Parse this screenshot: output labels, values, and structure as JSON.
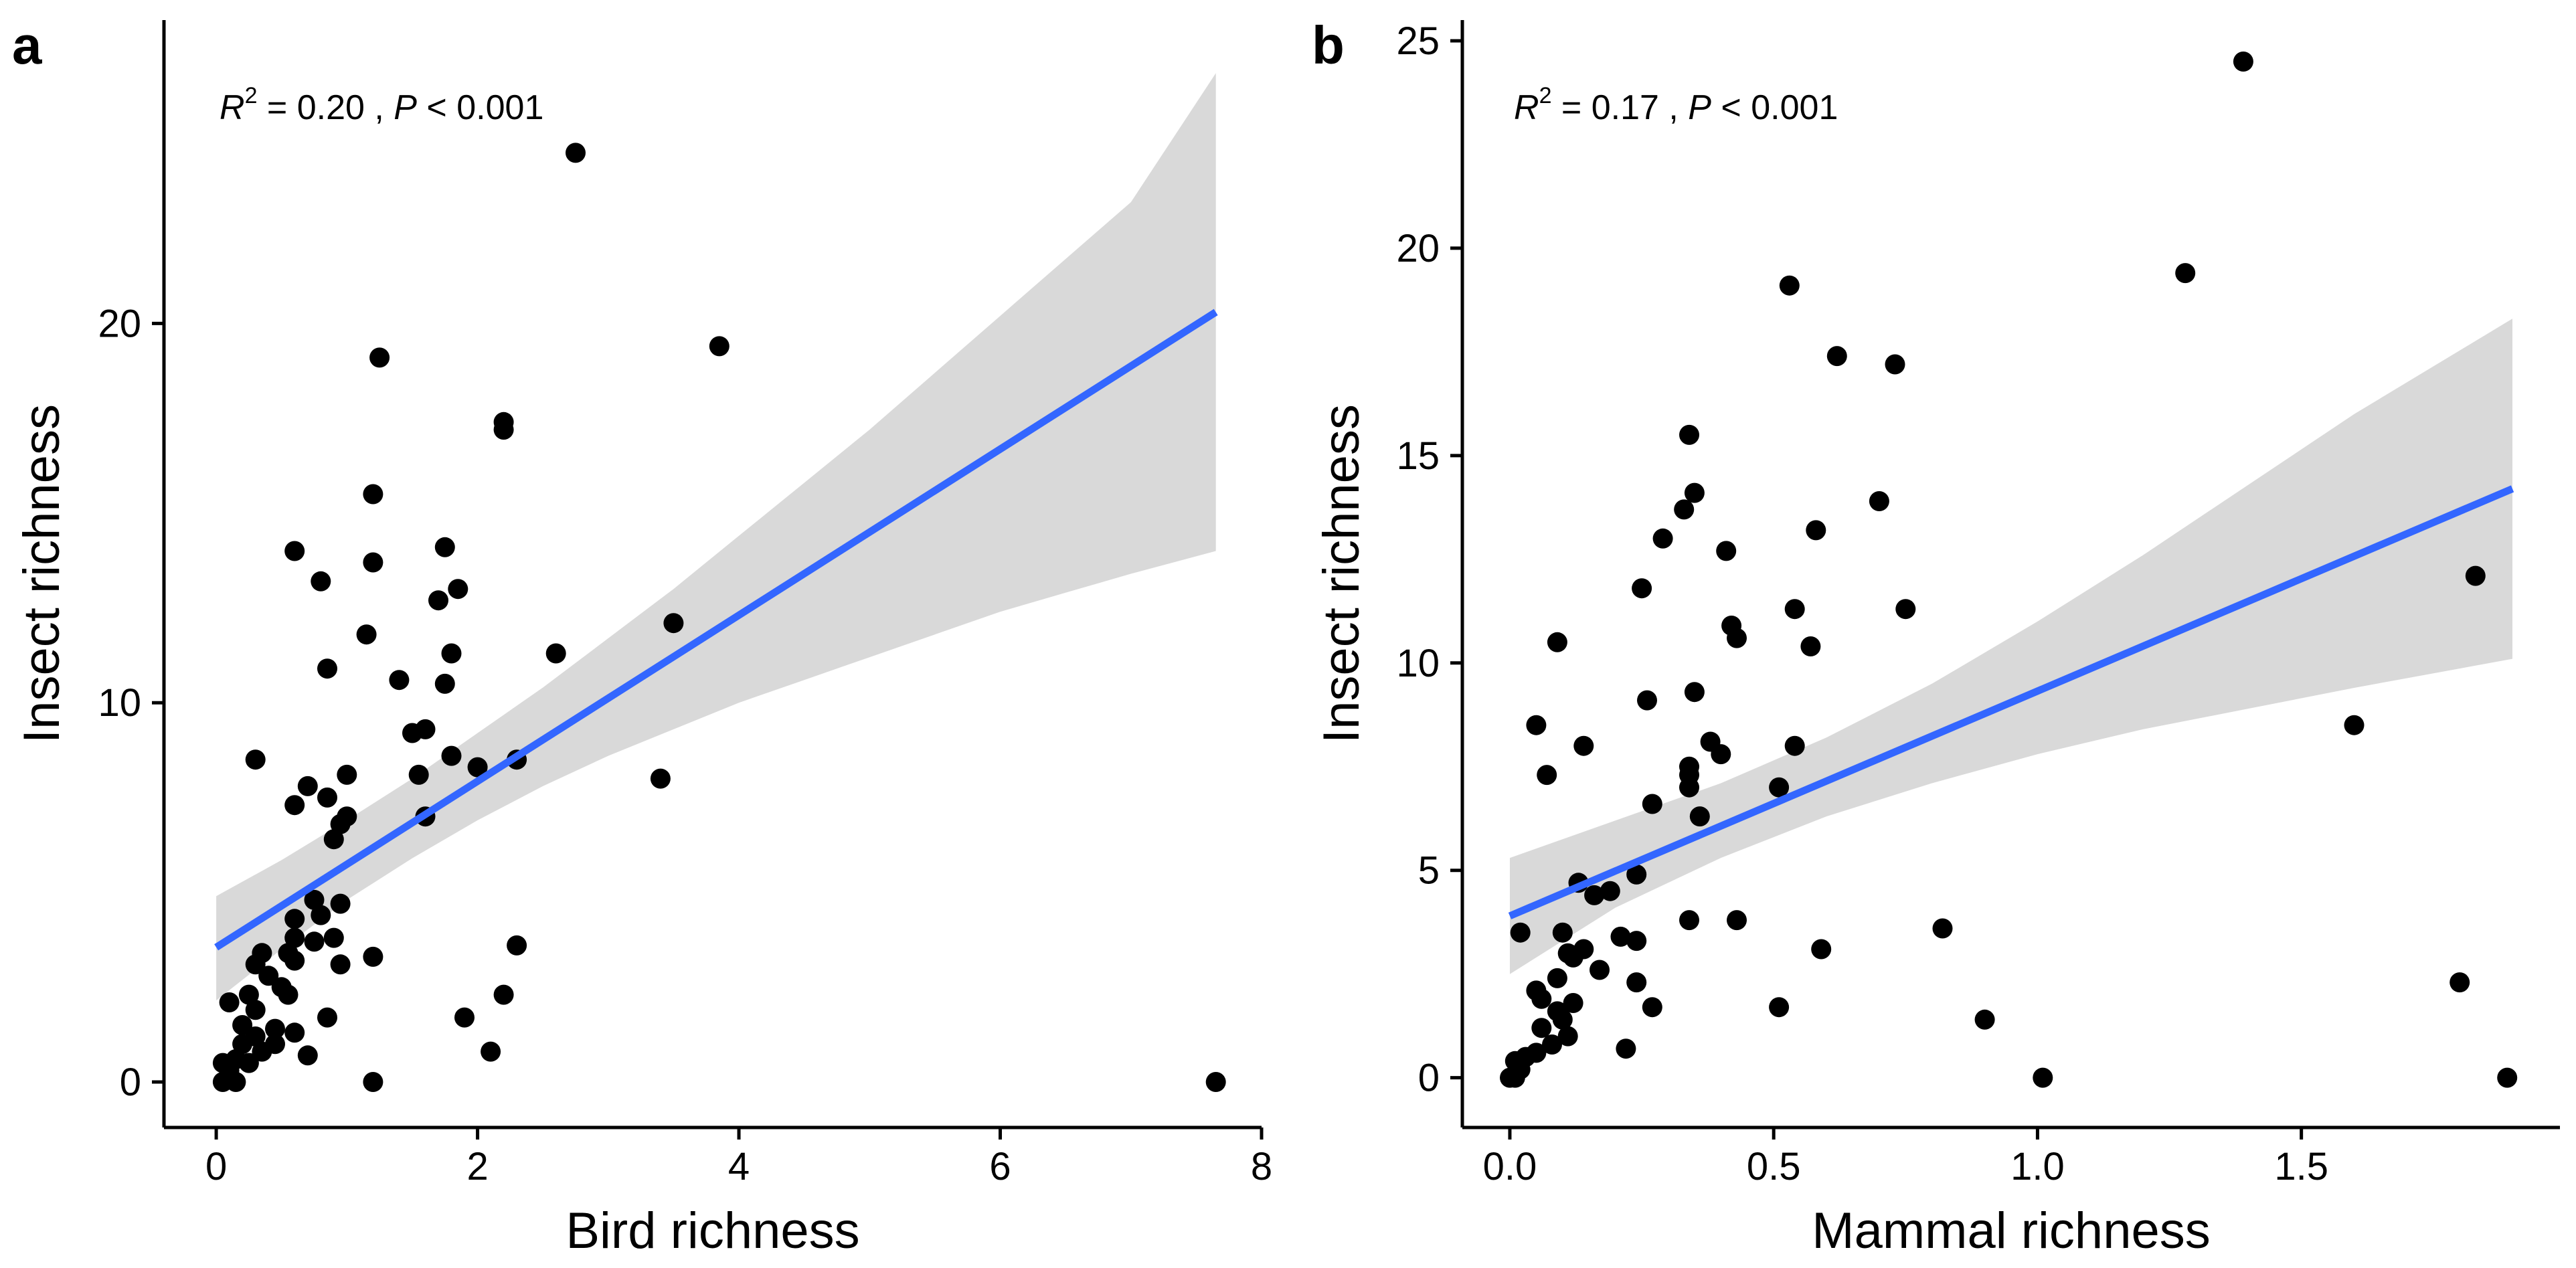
{
  "figure": {
    "style": {
      "point_color": "#000000",
      "fit_color": "#3366FF",
      "band_color": "#D9D9D9",
      "axis_color": "#000000",
      "background": "#FFFFFF"
    }
  },
  "chart_data": [
    {
      "panel": "a",
      "type": "scatter",
      "title": "",
      "xlabel": "Bird richness",
      "ylabel": "Insect richness",
      "xlim": [
        -0.4,
        8.0
      ],
      "ylim": [
        -1.2,
        28.0
      ],
      "x_ticks": [
        0,
        2,
        4,
        6,
        8
      ],
      "y_ticks": [
        0,
        10,
        20
      ],
      "annotation": {
        "r_sym": "R",
        "r_sup": "2",
        "r_val": " = 0.20 , ",
        "p_sym": "P",
        "p_val": " < 0.001"
      },
      "fit": {
        "x": [
          0,
          7.65
        ],
        "y": [
          3.55,
          20.3
        ],
        "ci_x": [
          0,
          0.5,
          1,
          1.5,
          2,
          2.5,
          3,
          3.5,
          4,
          4.5,
          5,
          5.5,
          6,
          6.5,
          7,
          7.65
        ],
        "ci_lower": [
          2.15,
          3.5,
          4.8,
          5.9,
          6.9,
          7.8,
          8.6,
          9.3,
          10.0,
          10.6,
          11.2,
          11.8,
          12.4,
          12.9,
          13.4,
          14.0
        ],
        "ci_upper": [
          4.9,
          5.85,
          6.9,
          8.0,
          9.2,
          10.4,
          11.7,
          13.0,
          14.4,
          15.8,
          17.2,
          18.7,
          20.2,
          21.7,
          23.2,
          26.6
        ]
      },
      "points": [
        [
          2.75,
          24.5
        ],
        [
          3.85,
          19.4
        ],
        [
          1.25,
          19.1
        ],
        [
          2.2,
          17.4
        ],
        [
          2.2,
          17.2
        ],
        [
          1.2,
          15.5
        ],
        [
          0.6,
          14.0
        ],
        [
          1.75,
          14.1
        ],
        [
          0.8,
          13.2
        ],
        [
          1.2,
          13.7
        ],
        [
          1.85,
          13.0
        ],
        [
          1.7,
          12.7
        ],
        [
          3.5,
          12.1
        ],
        [
          1.15,
          11.8
        ],
        [
          1.8,
          11.3
        ],
        [
          2.6,
          11.3
        ],
        [
          0.85,
          10.9
        ],
        [
          1.4,
          10.6
        ],
        [
          1.75,
          10.5
        ],
        [
          1.5,
          9.2
        ],
        [
          1.6,
          9.3
        ],
        [
          0.3,
          8.5
        ],
        [
          1.8,
          8.6
        ],
        [
          2.0,
          8.3
        ],
        [
          2.3,
          8.5
        ],
        [
          1.55,
          8.1
        ],
        [
          3.4,
          8.0
        ],
        [
          1.0,
          8.1
        ],
        [
          0.7,
          7.8
        ],
        [
          0.85,
          7.5
        ],
        [
          0.6,
          7.3
        ],
        [
          1.0,
          7.0
        ],
        [
          1.6,
          7.0
        ],
        [
          0.95,
          6.8
        ],
        [
          0.9,
          6.4
        ],
        [
          0.75,
          4.8
        ],
        [
          0.95,
          4.7
        ],
        [
          0.6,
          4.3
        ],
        [
          0.8,
          4.4
        ],
        [
          0.6,
          3.8
        ],
        [
          0.75,
          3.7
        ],
        [
          0.9,
          3.8
        ],
        [
          2.3,
          3.6
        ],
        [
          0.35,
          3.4
        ],
        [
          0.55,
          3.4
        ],
        [
          0.6,
          3.2
        ],
        [
          1.2,
          3.3
        ],
        [
          0.3,
          3.1
        ],
        [
          0.95,
          3.1
        ],
        [
          0.4,
          2.8
        ],
        [
          0.5,
          2.5
        ],
        [
          0.55,
          2.3
        ],
        [
          0.25,
          2.3
        ],
        [
          2.2,
          2.3
        ],
        [
          0.1,
          2.1
        ],
        [
          0.3,
          1.9
        ],
        [
          0.85,
          1.7
        ],
        [
          1.9,
          1.7
        ],
        [
          0.2,
          1.5
        ],
        [
          0.45,
          1.4
        ],
        [
          0.6,
          1.3
        ],
        [
          0.3,
          1.2
        ],
        [
          0.45,
          1.0
        ],
        [
          0.2,
          1.0
        ],
        [
          0.7,
          0.7
        ],
        [
          0.35,
          0.8
        ],
        [
          2.1,
          0.8
        ],
        [
          0.15,
          0.6
        ],
        [
          0.25,
          0.5
        ],
        [
          0.05,
          0.5
        ],
        [
          0.1,
          0.3
        ],
        [
          0.05,
          0.0
        ],
        [
          0.15,
          0.0
        ],
        [
          1.2,
          0.0
        ],
        [
          7.65,
          0.0
        ]
      ]
    },
    {
      "panel": "b",
      "type": "scatter",
      "title": "",
      "xlabel": "Mammal richness",
      "ylabel": "Insect richness",
      "xlim": [
        -0.09,
        1.99
      ],
      "ylim": [
        -1.2,
        25.5
      ],
      "x_ticks": [
        0.0,
        0.5,
        1.0,
        1.5
      ],
      "y_ticks": [
        0,
        5,
        10,
        15,
        20,
        25
      ],
      "annotation": {
        "r_sym": "R",
        "r_sup": "2",
        "r_val": " = 0.17 , ",
        "p_sym": "P",
        "p_val": " < 0.001"
      },
      "fit": {
        "x": [
          0,
          1.9
        ],
        "y": [
          3.9,
          14.2
        ],
        "ci_x": [
          0,
          0.2,
          0.4,
          0.6,
          0.8,
          1.0,
          1.2,
          1.4,
          1.6,
          1.9
        ],
        "ci_lower": [
          2.5,
          4.1,
          5.3,
          6.3,
          7.1,
          7.8,
          8.4,
          8.9,
          9.4,
          10.1
        ],
        "ci_upper": [
          5.3,
          6.2,
          7.1,
          8.2,
          9.5,
          11.0,
          12.6,
          14.3,
          16.0,
          18.3
        ]
      },
      "points": [
        [
          1.39,
          24.5
        ],
        [
          0.53,
          19.1
        ],
        [
          1.28,
          19.4
        ],
        [
          0.62,
          17.4
        ],
        [
          0.73,
          17.2
        ],
        [
          0.34,
          15.5
        ],
        [
          0.35,
          14.1
        ],
        [
          0.7,
          13.9
        ],
        [
          0.33,
          13.7
        ],
        [
          0.29,
          13.0
        ],
        [
          0.58,
          13.2
        ],
        [
          0.41,
          12.7
        ],
        [
          1.83,
          12.1
        ],
        [
          0.25,
          11.8
        ],
        [
          0.54,
          11.3
        ],
        [
          0.75,
          11.3
        ],
        [
          0.42,
          10.9
        ],
        [
          0.43,
          10.6
        ],
        [
          0.09,
          10.5
        ],
        [
          0.57,
          10.4
        ],
        [
          0.35,
          9.3
        ],
        [
          0.26,
          9.1
        ],
        [
          0.05,
          8.5
        ],
        [
          1.6,
          8.5
        ],
        [
          0.38,
          8.1
        ],
        [
          0.14,
          8.0
        ],
        [
          0.54,
          8.0
        ],
        [
          0.4,
          7.8
        ],
        [
          0.34,
          7.5
        ],
        [
          0.34,
          7.3
        ],
        [
          0.07,
          7.3
        ],
        [
          0.51,
          7.0
        ],
        [
          0.34,
          7.0
        ],
        [
          0.27,
          6.6
        ],
        [
          0.36,
          6.3
        ],
        [
          0.24,
          4.9
        ],
        [
          0.13,
          4.7
        ],
        [
          0.19,
          4.5
        ],
        [
          0.16,
          4.4
        ],
        [
          0.34,
          3.8
        ],
        [
          0.43,
          3.8
        ],
        [
          0.82,
          3.6
        ],
        [
          0.02,
          3.5
        ],
        [
          0.1,
          3.5
        ],
        [
          0.21,
          3.4
        ],
        [
          0.24,
          3.3
        ],
        [
          0.59,
          3.1
        ],
        [
          0.14,
          3.1
        ],
        [
          0.11,
          3.0
        ],
        [
          0.12,
          2.9
        ],
        [
          0.17,
          2.6
        ],
        [
          0.09,
          2.4
        ],
        [
          0.24,
          2.3
        ],
        [
          1.8,
          2.3
        ],
        [
          0.05,
          2.1
        ],
        [
          0.06,
          1.9
        ],
        [
          0.12,
          1.8
        ],
        [
          0.27,
          1.7
        ],
        [
          0.51,
          1.7
        ],
        [
          0.09,
          1.6
        ],
        [
          0.1,
          1.4
        ],
        [
          0.9,
          1.4
        ],
        [
          0.06,
          1.2
        ],
        [
          0.11,
          1.0
        ],
        [
          0.08,
          0.8
        ],
        [
          0.22,
          0.7
        ],
        [
          0.05,
          0.6
        ],
        [
          0.03,
          0.5
        ],
        [
          0.01,
          0.4
        ],
        [
          0.02,
          0.2
        ],
        [
          0.0,
          0.0
        ],
        [
          0.01,
          0.0
        ],
        [
          1.01,
          0.0
        ],
        [
          1.89,
          0.0
        ]
      ]
    }
  ]
}
